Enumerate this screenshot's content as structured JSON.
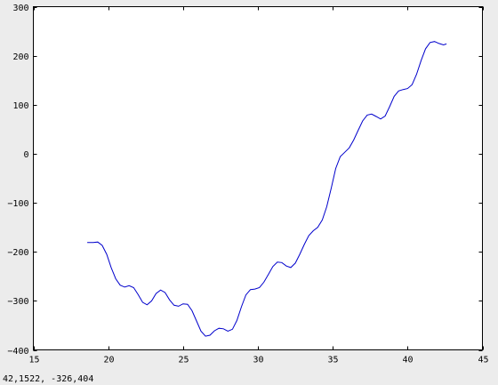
{
  "status_bar": {
    "coordinates": "42,1522, -326,404"
  },
  "colors": {
    "line": "#0000cc",
    "axes": "#000000",
    "plot_background": "#ffffff",
    "window_background": "#ececec"
  },
  "chart_data": {
    "type": "line",
    "title": "",
    "xlabel": "",
    "ylabel": "",
    "xlim": [
      15,
      45
    ],
    "ylim": [
      -400,
      300
    ],
    "x_ticks": [
      15,
      20,
      25,
      30,
      35,
      40,
      45
    ],
    "y_ticks": [
      -400,
      -300,
      -200,
      -100,
      0,
      100,
      200,
      300
    ],
    "x_tick_labels": [
      "15",
      "20",
      "25",
      "30",
      "35",
      "40",
      "45"
    ],
    "y_tick_labels": [
      "−400",
      "−300",
      "−200",
      "−100",
      "0",
      "100",
      "200",
      "300"
    ],
    "grid": false,
    "legend": "none",
    "series": [
      {
        "x": [
          18.6,
          19.0,
          19.3,
          19.6,
          19.9,
          20.2,
          20.5,
          20.8,
          21.1,
          21.4,
          21.7,
          22.0,
          22.3,
          22.6,
          22.9,
          23.2,
          23.5,
          23.8,
          24.1,
          24.4,
          24.7,
          25.0,
          25.3,
          25.6,
          25.9,
          26.2,
          26.5,
          26.8,
          27.1,
          27.4,
          27.7,
          28.0,
          28.3,
          28.6,
          28.9,
          29.2,
          29.5,
          29.8,
          30.1,
          30.4,
          30.7,
          31.0,
          31.3,
          31.6,
          31.9,
          32.2,
          32.5,
          32.8,
          33.1,
          33.4,
          33.7,
          34.0,
          34.3,
          34.6,
          34.9,
          35.2,
          35.5,
          35.8,
          36.1,
          36.4,
          36.7,
          37.0,
          37.3,
          37.6,
          37.9,
          38.2,
          38.5,
          38.8,
          39.1,
          39.4,
          39.7,
          40.0,
          40.3,
          40.6,
          40.9,
          41.2,
          41.5,
          41.8,
          42.1,
          42.4,
          42.6
        ],
        "y": [
          -181,
          -181,
          -180,
          -187,
          -205,
          -232,
          -255,
          -268,
          -272,
          -269,
          -273,
          -287,
          -303,
          -308,
          -300,
          -285,
          -278,
          -283,
          -298,
          -309,
          -311,
          -306,
          -307,
          -320,
          -341,
          -362,
          -372,
          -370,
          -361,
          -356,
          -357,
          -362,
          -358,
          -340,
          -312,
          -288,
          -277,
          -276,
          -273,
          -262,
          -246,
          -230,
          -221,
          -222,
          -229,
          -232,
          -223,
          -205,
          -185,
          -167,
          -157,
          -150,
          -135,
          -108,
          -70,
          -30,
          -6,
          3,
          12,
          28,
          48,
          67,
          79,
          81,
          76,
          71,
          77,
          96,
          117,
          128,
          131,
          133,
          141,
          162,
          190,
          214,
          227,
          229,
          225,
          222,
          224
        ]
      }
    ]
  }
}
